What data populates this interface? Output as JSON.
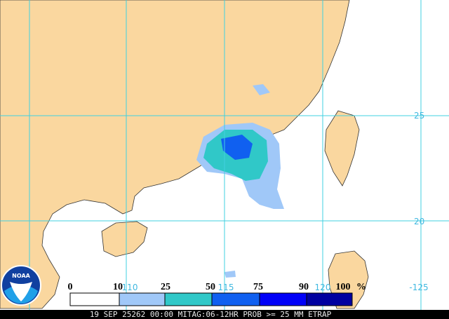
{
  "map": {
    "grid_labels": {
      "lat": [
        "25",
        "20"
      ],
      "lon": [
        "110",
        "115",
        "120",
        "-125"
      ]
    },
    "legend": {
      "labels": [
        "0",
        "10",
        "25",
        "50",
        "75",
        "90",
        "100"
      ],
      "unit": "%"
    },
    "logo": "NOAA",
    "footer": "19 SEP 25262 00:00 MITAG:06-12HR PROB >= 25 MM ETRAP"
  }
}
